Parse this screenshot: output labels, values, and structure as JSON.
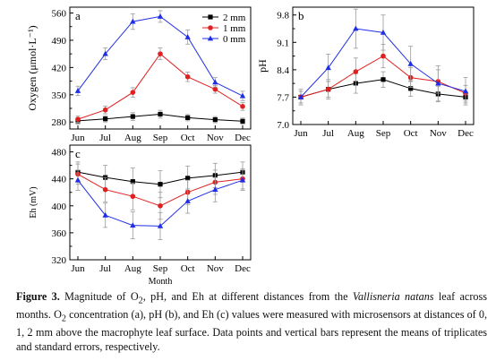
{
  "months": [
    "Jun",
    "Jul",
    "Aug",
    "Sep",
    "Oct",
    "Nov",
    "Dec"
  ],
  "legend": {
    "s2": "2 mm",
    "s1": "1 mm",
    "s0": "0 mm"
  },
  "colors": {
    "s2": "#000000",
    "s1": "#e02020",
    "s0": "#1f2ee6"
  },
  "caption": {
    "label": "Figure 3.",
    "text_1": " Magnitude of O",
    "sub_1": "2",
    "text_2": ", pH, and Eh at different distances from the ",
    "species": "Vallisneria natans",
    "text_3": " leaf across months. O",
    "sub_2": "2",
    "text_4": " concentration (a), pH (b), and Eh (c) values were measured with microsensors at distances of 0, 1, 2 mm above the macrophyte leaf surface. Data points and vertical bars represent the means of triplicates and standard errors, respectively."
  },
  "chart_data": [
    {
      "type": "line",
      "panel_label": "a",
      "ylabel": "Oxygen (μmol·L⁻¹)",
      "xlabel": "",
      "categories": [
        "Jun",
        "Jul",
        "Aug",
        "Sep",
        "Oct",
        "Nov",
        "Dec"
      ],
      "ylim": [
        262,
        575
      ],
      "yticks": [
        280,
        350,
        420,
        490,
        560
      ],
      "series": [
        {
          "name": "2 mm",
          "values": [
            283,
            288,
            294,
            300,
            291,
            286,
            282
          ],
          "err": [
            8,
            8,
            10,
            10,
            8,
            8,
            8
          ]
        },
        {
          "name": "1 mm",
          "values": [
            287,
            311,
            356,
            455,
            396,
            364,
            320
          ],
          "err": [
            8,
            10,
            12,
            15,
            12,
            10,
            10
          ]
        },
        {
          "name": "0 mm",
          "values": [
            360,
            455,
            538,
            551,
            498,
            382,
            347
          ],
          "err": [
            12,
            15,
            20,
            15,
            18,
            12,
            12
          ]
        }
      ],
      "legend_position": "top-right"
    },
    {
      "type": "line",
      "panel_label": "b",
      "ylabel": "pH",
      "xlabel": "",
      "categories": [
        "Jun",
        "Jul",
        "Aug",
        "Sep",
        "Oct",
        "Nov",
        "Dec"
      ],
      "ylim": [
        7.0,
        10.0
      ],
      "yticks": [
        7.0,
        7.7,
        8.4,
        9.1,
        9.8
      ],
      "series": [
        {
          "name": "2 mm",
          "values": [
            7.7,
            7.9,
            8.05,
            8.15,
            7.92,
            7.78,
            7.7
          ],
          "err": [
            0.15,
            0.2,
            0.25,
            0.2,
            0.2,
            0.2,
            0.15
          ]
        },
        {
          "name": "1 mm",
          "values": [
            7.7,
            7.9,
            8.35,
            8.75,
            8.2,
            8.1,
            7.8
          ],
          "err": [
            0.15,
            0.25,
            0.35,
            0.3,
            0.25,
            0.3,
            0.2
          ]
        },
        {
          "name": "0 mm",
          "values": [
            7.7,
            8.45,
            9.45,
            9.35,
            8.55,
            8.05,
            7.85
          ],
          "err": [
            0.2,
            0.35,
            0.5,
            0.45,
            0.45,
            0.45,
            0.35
          ]
        }
      ]
    },
    {
      "type": "line",
      "panel_label": "c",
      "ylabel": "Eh (mV)",
      "xlabel": "Month",
      "categories": [
        "Jun",
        "Jul",
        "Aug",
        "Sep",
        "Oct",
        "Nov",
        "Dec"
      ],
      "ylim": [
        320,
        490
      ],
      "yticks": [
        320,
        360,
        400,
        440,
        480
      ],
      "series": [
        {
          "name": "2 mm",
          "values": [
            450,
            442,
            436,
            432,
            441,
            445,
            450
          ],
          "err": [
            15,
            18,
            20,
            20,
            18,
            18,
            15
          ]
        },
        {
          "name": "1 mm",
          "values": [
            447,
            424,
            414,
            400,
            420,
            435,
            440
          ],
          "err": [
            15,
            18,
            20,
            20,
            18,
            18,
            15
          ]
        },
        {
          "name": "0 mm",
          "values": [
            438,
            386,
            371,
            370,
            407,
            424,
            438
          ],
          "err": [
            15,
            18,
            20,
            20,
            18,
            18,
            15
          ]
        }
      ]
    }
  ]
}
